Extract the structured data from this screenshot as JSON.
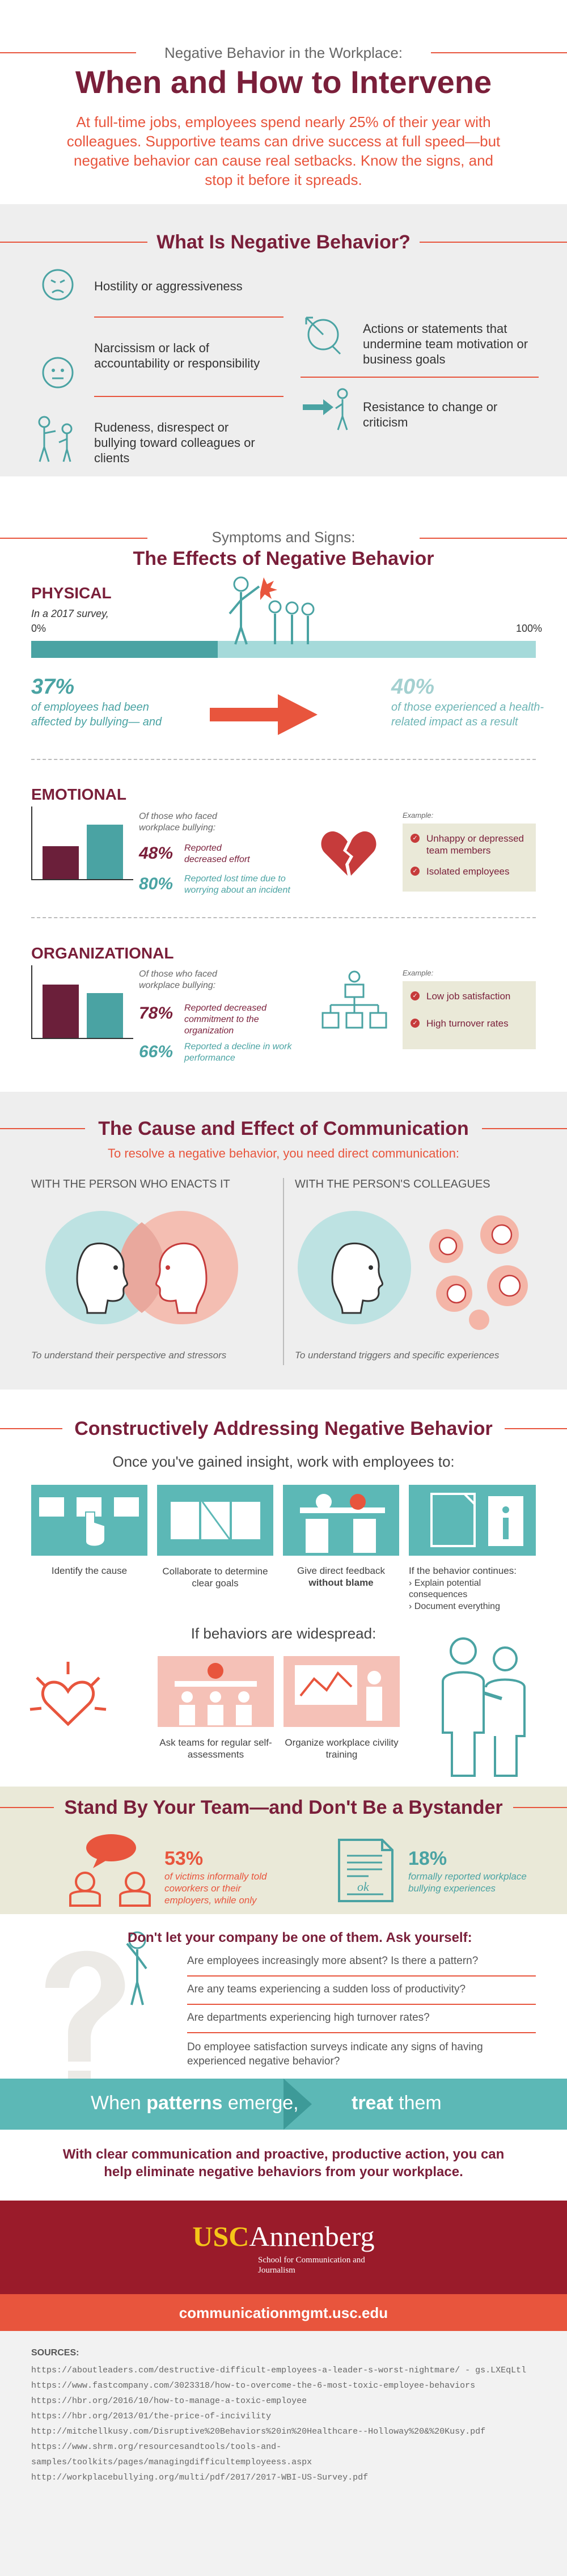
{
  "header": {
    "kicker": "Negative Behavior in the Workplace:",
    "title": "When and How to Intervene",
    "intro": "At full-time jobs, employees spend nearly 25% of their year with colleagues. Supportive teams can drive success at full speed—but negative behavior can cause real setbacks. Know the signs, and stop it before it spreads."
  },
  "what": {
    "title": "What Is Negative Behavior?",
    "items": [
      "Hostility or aggressiveness",
      "Narcissism or lack of accountability or responsibility",
      "Rudeness, disrespect or bullying toward colleagues or clients",
      "Actions or statements that undermine team motivation or business goals",
      "Resistance to change or criticism"
    ]
  },
  "symptoms": {
    "kicker": "Symptoms and Signs:",
    "title": "The Effects of Negative Behavior",
    "physical": {
      "label": "PHYSICAL",
      "survey": "In a 2017 survey,",
      "axis_min": "0%",
      "axis_max": "100%",
      "stat1": "37%",
      "stat1_text": "of employees had been affected by bullying— and",
      "stat1_value": 37,
      "stat2": "40%",
      "stat2_text": "of those experienced a health-related impact as a result"
    },
    "emotional": {
      "label": "EMOTIONAL",
      "lead": "Of those who faced workplace bullying:",
      "stat1": "48%",
      "stat1_text": "Reported decreased effort",
      "stat2": "80%",
      "stat2_text": "Reported lost time due to worrying about an incident",
      "bar_values": [
        48,
        80
      ],
      "example_label": "Example:",
      "examples": [
        "Unhappy or depressed team members",
        "Isolated employees"
      ]
    },
    "organizational": {
      "label": "ORGANIZATIONAL",
      "lead": "Of those who faced workplace bullying:",
      "stat1": "78%",
      "stat1_text": "Reported decreased commitment to the organization",
      "stat2": "66%",
      "stat2_text": "Reported a decline in work performance",
      "bar_values": [
        78,
        66
      ],
      "example_label": "Example:",
      "examples": [
        "Low job satisfaction",
        "High turnover rates"
      ]
    }
  },
  "communication": {
    "title": "The Cause and Effect of Communication",
    "subtitle": "To resolve a negative behavior, you need direct communication:",
    "left_heading": "WITH THE PERSON WHO ENACTS IT",
    "right_heading": "WITH THE PERSON'S COLLEAGUES",
    "left_caption": "To understand their perspective and stressors",
    "right_caption": "To understand triggers and specific experiences"
  },
  "addressing": {
    "title": "Constructively Addressing Negative Behavior",
    "subtitle": "Once you've gained insight, work with employees to:",
    "steps": [
      "Identify the cause",
      "Collaborate to determine clear goals",
      "Give direct feedback",
      "without blame"
    ],
    "continues_lead": "If the behavior continues:",
    "continues": [
      "Explain potential consequences",
      "Document everything"
    ],
    "widespread": "If behaviors are widespread:",
    "widespread_items": [
      "Ask teams for regular self-assessments",
      "Organize workplace civility training"
    ]
  },
  "bystander": {
    "title": "Stand By Your Team—and Don't Be a Bystander",
    "stat1": "53%",
    "stat1_text": "of victims informally told coworkers or their employers, while only",
    "stat2": "18%",
    "stat2_text": "formally reported workplace bullying experiences",
    "form_text": "ok"
  },
  "questions": {
    "title": "Don't let your company be one of them. Ask yourself:",
    "items": [
      "Are employees increasingly more absent? Is there a pattern?",
      "Are any teams experiencing a sudden loss of productivity?",
      "Are departments experiencing high turnover rates?",
      "Do employee satisfaction surveys indicate any signs of having experienced negative behavior?"
    ]
  },
  "banner": {
    "left_pre": "When ",
    "left_bold": "patterns",
    "left_post": " emerge,",
    "right_bold": "treat",
    "right_post": " them"
  },
  "closing": "With clear communication and proactive, productive action, you can help eliminate negative behaviors from your workplace.",
  "footer": {
    "brand_usc": "USC",
    "brand_annenberg": "Annenberg",
    "school": "School for Communication and Journalism",
    "url": "communicationmgmt.usc.edu"
  },
  "sources": {
    "label": "SOURCES:",
    "items": [
      "https://aboutleaders.com/destructive-difficult-employees-a-leader-s-worst-nightmare/ - gs.LXEqLtl",
      "https://www.fastcompany.com/3023318/how-to-overcome-the-6-most-toxic-employee-behaviors",
      "https://hbr.org/2016/10/how-to-manage-a-toxic-employee",
      "https://hbr.org/2013/01/the-price-of-incivility",
      "http://mitchellkusy.com/Disruptive%20Behaviors%20in%20Healthcare--Holloway%20&%20Kusy.pdf",
      "https://www.shrm.org/resourcesandtools/tools-and-samples/toolkits/pages/managingdifficultemployeess.aspx",
      "http://workplacebullying.org/multi/pdf/2017/2017-WBI-US-Survey.pdf"
    ]
  },
  "colors": {
    "maroon": "#7a1f3a",
    "orange": "#e8553d",
    "teal": "#4aa3a3",
    "red": "#c63b3b",
    "lightgray": "#eeeeee",
    "banner_teal": "#5cb8b6"
  }
}
